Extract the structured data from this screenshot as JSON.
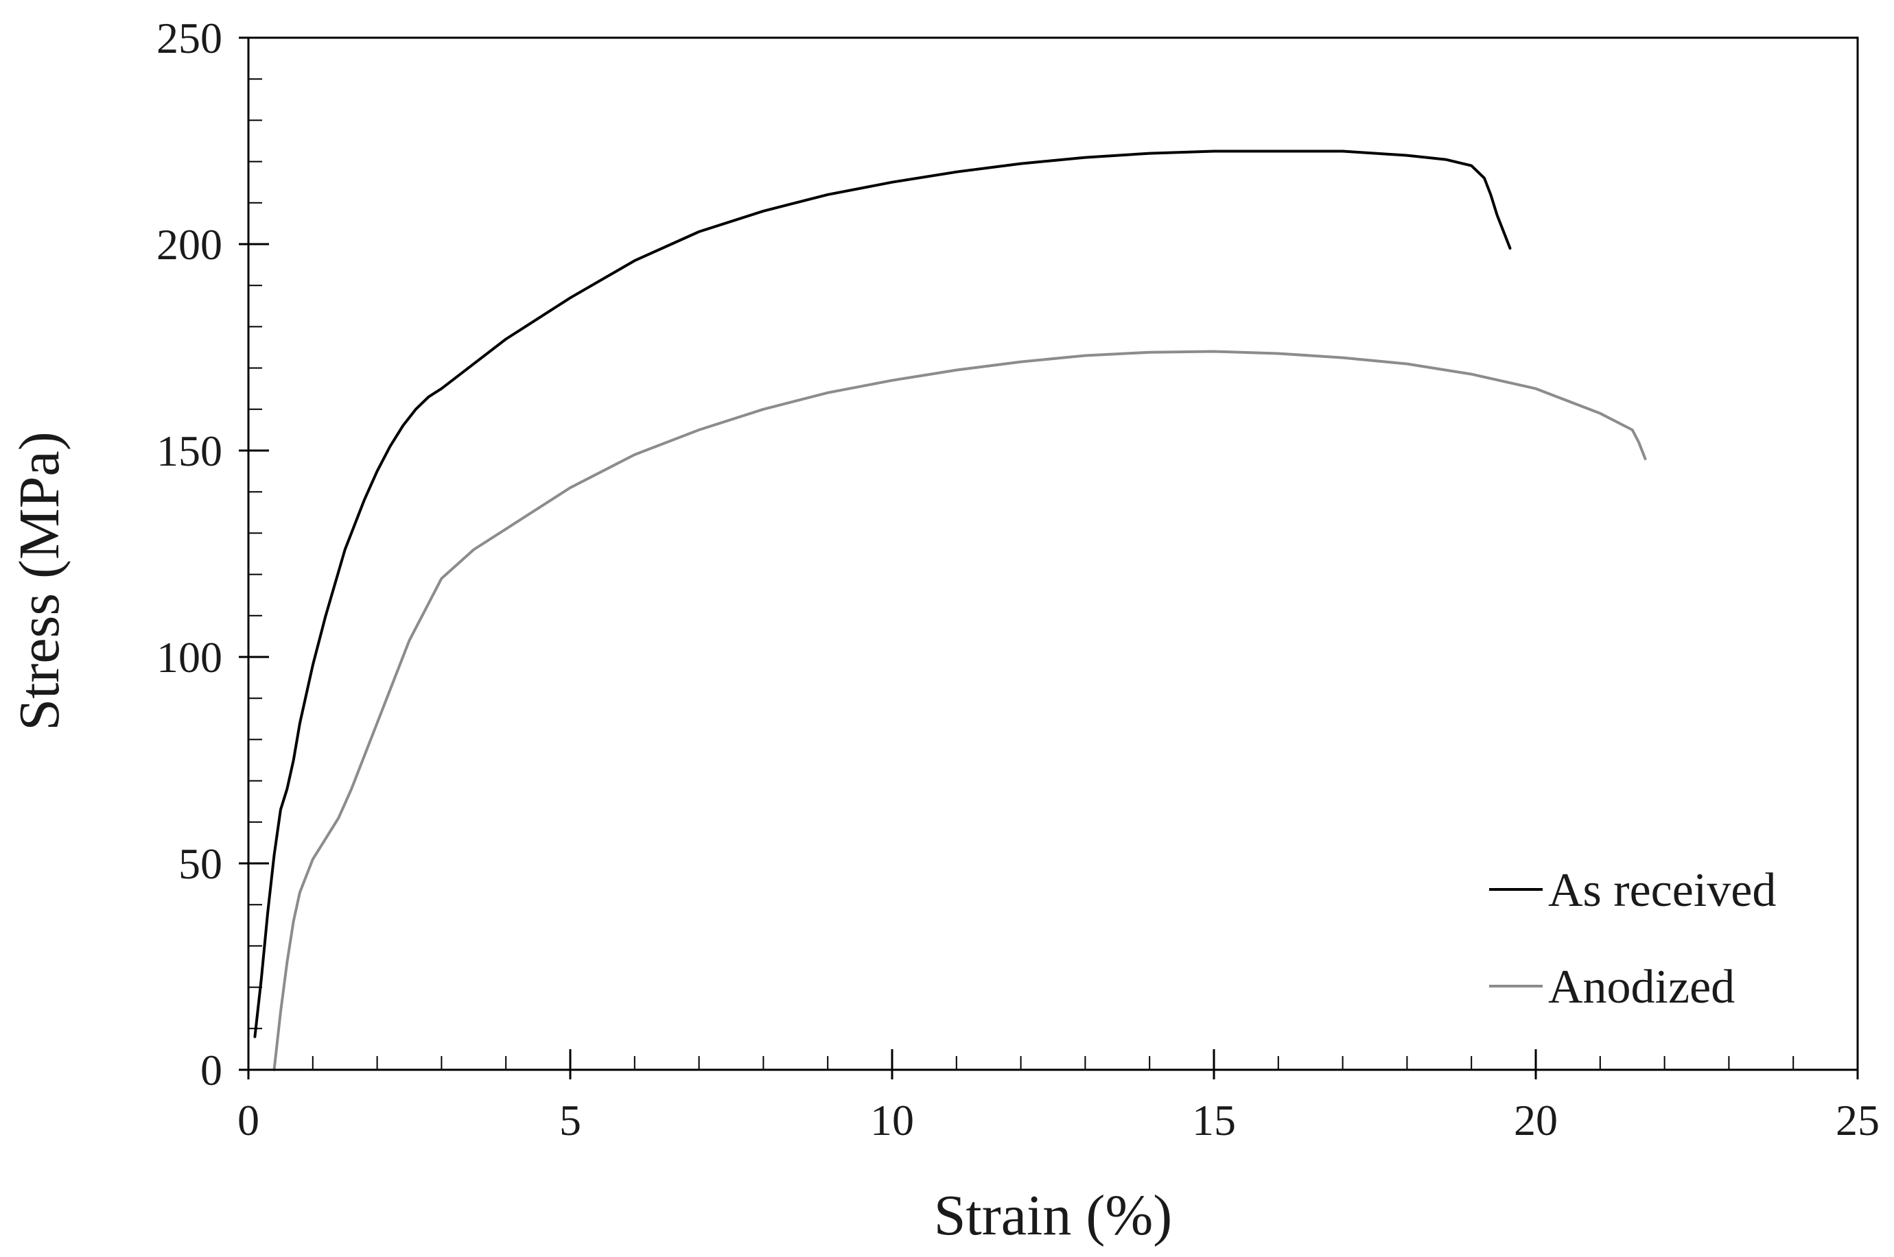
{
  "chart_data": {
    "type": "line",
    "xlabel": "Strain (%)",
    "ylabel": "Stress (MPa)",
    "xlim": [
      0,
      25
    ],
    "ylim": [
      0,
      250
    ],
    "x_ticks": [
      0,
      5,
      10,
      15,
      20,
      25
    ],
    "y_ticks": [
      0,
      50,
      100,
      150,
      200,
      250
    ],
    "x_tick_labels": [
      "0",
      "5",
      "10",
      "15",
      "20",
      "25"
    ],
    "y_tick_labels": [
      "0",
      "50",
      "100",
      "150",
      "200",
      "250"
    ],
    "x_minor_step": 1,
    "y_minor_step": 10,
    "grid": false,
    "legend_position": "bottom-right",
    "series": [
      {
        "name": "As received",
        "color": "#000000",
        "x": [
          0.1,
          0.2,
          0.3,
          0.4,
          0.5,
          0.6,
          0.7,
          0.8,
          1.0,
          1.2,
          1.5,
          1.8,
          2.0,
          2.2,
          2.4,
          2.6,
          2.8,
          3.0,
          3.5,
          4.0,
          5.0,
          6.0,
          7.0,
          8.0,
          9.0,
          10.0,
          11.0,
          12.0,
          13.0,
          14.0,
          15.0,
          16.0,
          17.0,
          18.0,
          18.6,
          19.0,
          19.2,
          19.3,
          19.4,
          19.5,
          19.6
        ],
        "y": [
          8,
          22,
          38,
          52,
          63,
          68,
          75,
          84,
          98,
          110,
          126,
          138,
          145,
          151,
          156,
          160,
          163,
          165,
          171,
          177,
          187,
          196,
          203,
          208,
          212,
          215,
          217.5,
          219.5,
          221,
          222,
          222.5,
          222.5,
          222.5,
          221.5,
          220.5,
          219,
          216,
          212,
          207,
          203,
          199
        ]
      },
      {
        "name": "Anodized",
        "color": "#8c8c8c",
        "x": [
          0.4,
          0.5,
          0.6,
          0.7,
          0.8,
          1.0,
          1.2,
          1.4,
          1.6,
          2.0,
          2.5,
          3.0,
          3.5,
          4.0,
          5.0,
          6.0,
          7.0,
          8.0,
          9.0,
          10.0,
          11.0,
          12.0,
          13.0,
          14.0,
          15.0,
          16.0,
          17.0,
          18.0,
          19.0,
          20.0,
          21.0,
          21.5,
          21.6,
          21.7
        ],
        "y": [
          0,
          14,
          26,
          36,
          43,
          51,
          56,
          61,
          68,
          84,
          104,
          119,
          126,
          131,
          141,
          149,
          155,
          160,
          164,
          167,
          169.5,
          171.5,
          173,
          173.8,
          174,
          173.5,
          172.5,
          171,
          168.5,
          165,
          159,
          155,
          152,
          148
        ]
      }
    ]
  }
}
